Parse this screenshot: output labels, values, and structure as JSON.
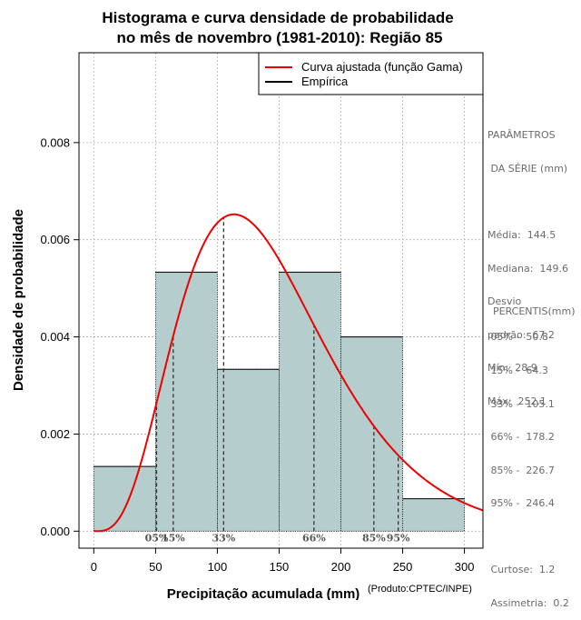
{
  "chart_data": {
    "type": "histogram",
    "title_line1": "Histograma e curva densidade de probabilidade",
    "title_line2": "no mês de novembro (1981-2010): Região 85",
    "xlabel": "Precipitação acumulada (mm)",
    "ylabel": "Densidade de probabilidade",
    "credit": "(Produto:CPTEC/INPE)",
    "xlim": [
      -12,
      315
    ],
    "ylim": [
      -0.00035,
      0.00985
    ],
    "x_ticks": [
      0,
      50,
      100,
      150,
      200,
      250,
      300
    ],
    "y_ticks": [
      0.0,
      0.002,
      0.004,
      0.006,
      0.008
    ],
    "y_tick_labels": [
      "0.000",
      "0.002",
      "0.004",
      "0.006",
      "0.008"
    ],
    "grid": true,
    "bins": [
      {
        "from": 0,
        "to": 50,
        "density": 0.001333
      },
      {
        "from": 50,
        "to": 100,
        "density": 0.005333
      },
      {
        "from": 100,
        "to": 150,
        "density": 0.003333
      },
      {
        "from": 150,
        "to": 200,
        "density": 0.005333
      },
      {
        "from": 200,
        "to": 250,
        "density": 0.004
      },
      {
        "from": 250,
        "to": 300,
        "density": 0.000667
      }
    ],
    "bar_color": "#b5cdcd",
    "curve_color": "#ee0000",
    "gamma_shape": 4.6,
    "gamma_scale": 31.5,
    "legend": {
      "position": "top-right",
      "entries": [
        {
          "label": "Curva ajustada (função Gama)",
          "color": "#ee0000"
        },
        {
          "label": "Empírica",
          "color": "#000000"
        }
      ]
    },
    "percentiles": [
      {
        "label": "05%",
        "value": 50.8
      },
      {
        "label": "15%",
        "value": 64.3
      },
      {
        "label": "33%",
        "value": 105.1
      },
      {
        "label": "66%",
        "value": 178.2
      },
      {
        "label": "85%",
        "value": 226.7
      },
      {
        "label": "95%",
        "value": 246.4
      }
    ]
  },
  "stats": {
    "heading1": "PARÂMETROS",
    "heading2": " DA SÉRIE (mm)",
    "media": "Média:  144.5",
    "mediana": "Mediana:  149.6",
    "desvio1": "Desvio",
    "desvio2": "padrão:  67.2",
    "min": "Mín:  28.9",
    "max": "Máx:  252.1"
  },
  "percentis_panel": {
    "heading": "PERCENTIS(mm)",
    "lines": [
      " 05% -  50.8",
      " 15% -  64.3",
      " 33% -  105.1",
      " 66% -  178.2",
      " 85% -  226.7",
      " 95% -  246.4"
    ],
    "curtose": " Curtose:  1.2",
    "assimetria": " Assimetria:  0.2"
  }
}
